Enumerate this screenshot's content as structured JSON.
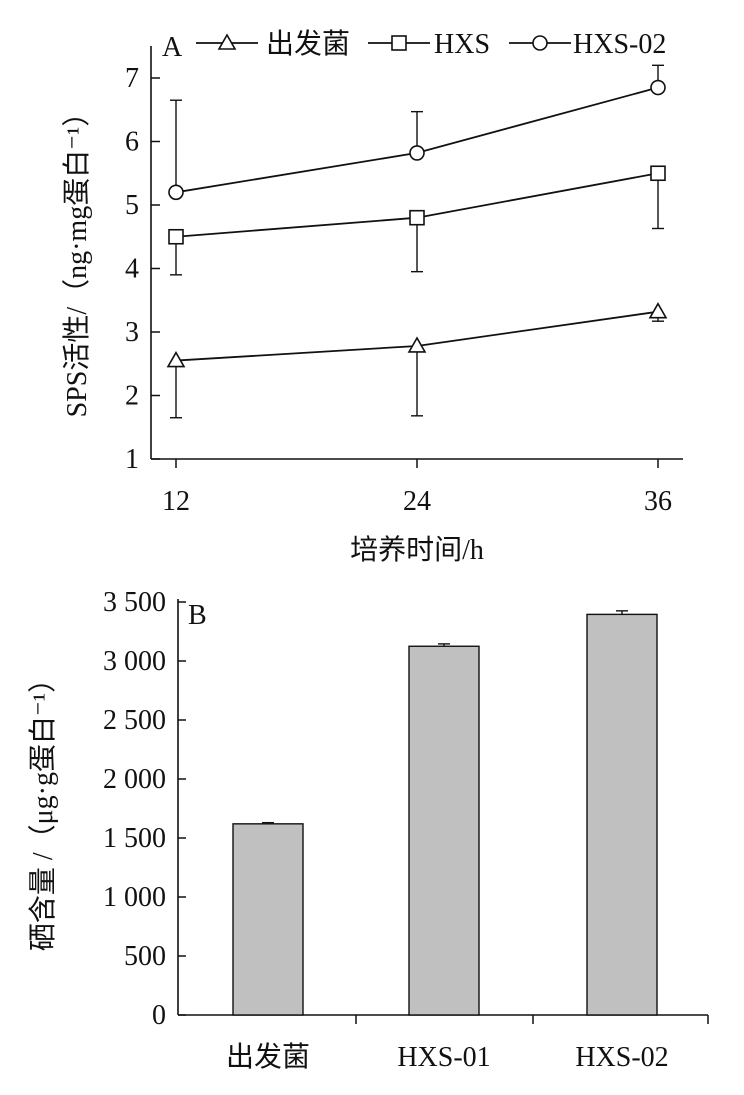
{
  "chart_data": [
    {
      "type": "line",
      "panel_label": "A",
      "xlabel": "培养时间/h",
      "ylabel": "SPS活性/（ng·mg蛋白⁻¹）",
      "x": [
        12,
        24,
        36
      ],
      "x_tick_labels": [
        "12",
        "24",
        "36"
      ],
      "ylim": [
        1,
        7.5
      ],
      "y_ticks": [
        1,
        2,
        3,
        4,
        5,
        6,
        7
      ],
      "y_tick_labels": [
        "1",
        "2",
        "3",
        "4",
        "5",
        "6",
        "7"
      ],
      "legend_position": "top",
      "series": [
        {
          "name": "出发菌",
          "marker": "triangle",
          "values": [
            2.55,
            2.78,
            3.32
          ],
          "error": [
            0.9,
            1.1,
            0.15
          ],
          "error_direction": "down"
        },
        {
          "name": "HXS",
          "marker": "square",
          "values": [
            4.5,
            4.8,
            5.5
          ],
          "error": [
            0.6,
            0.85,
            0.87
          ],
          "error_direction": "down"
        },
        {
          "name": "HXS-02",
          "marker": "circle",
          "values": [
            5.2,
            5.82,
            6.85
          ],
          "error": [
            1.45,
            0.65,
            0.35
          ],
          "error_direction": "up"
        }
      ]
    },
    {
      "type": "bar",
      "panel_label": "B",
      "xlabel": "",
      "ylabel": "硒含量 /（μg·g蛋白⁻¹）",
      "categories": [
        "出发菌",
        "HXS-01",
        "HXS-02"
      ],
      "values": [
        1620,
        3125,
        3395
      ],
      "error": [
        10,
        20,
        30
      ],
      "ylim": [
        0,
        3500
      ],
      "y_ticks": [
        0,
        500,
        1000,
        1500,
        2000,
        2500,
        3000,
        3500
      ],
      "y_tick_labels": [
        "0",
        "500",
        "1 000",
        "1 500",
        "2 000",
        "2 500",
        "3 000",
        "3 500"
      ],
      "bar_color": "#c0c0c0",
      "grid": false
    }
  ]
}
